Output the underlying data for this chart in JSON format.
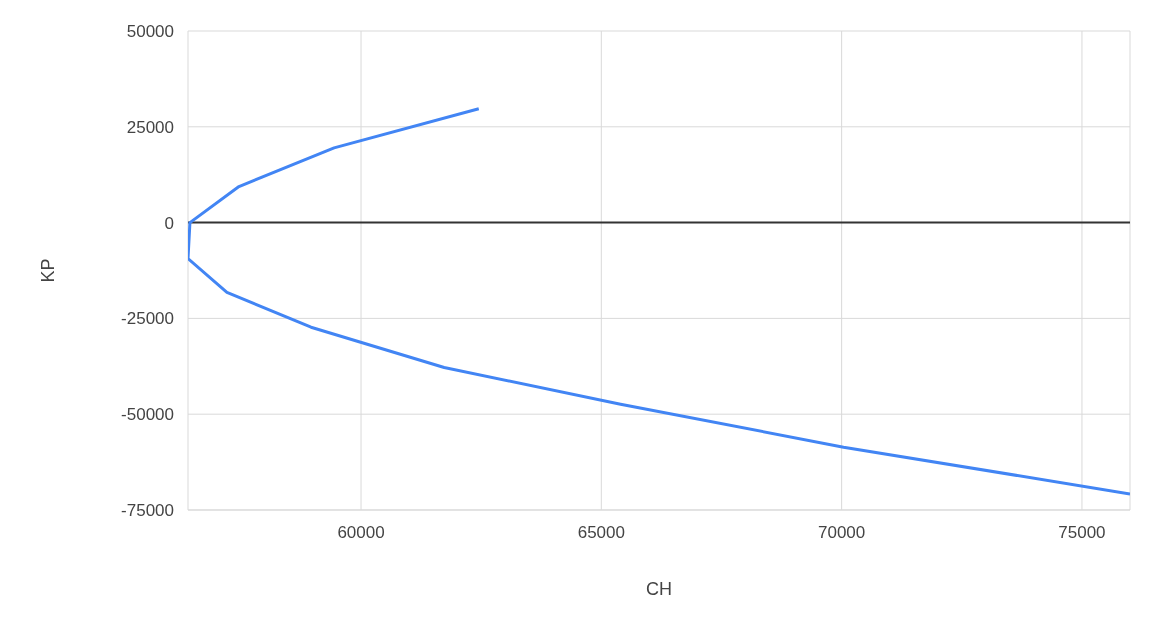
{
  "chart_data": {
    "type": "line",
    "xlabel": "CH",
    "ylabel": "KP",
    "x": [
      62450,
      59440,
      57460,
      56440,
      56400,
      57210,
      58960,
      61730,
      65400,
      70040,
      76000
    ],
    "series": [
      {
        "color": "#4285f4",
        "values": [
          29700,
          19500,
          9400,
          0,
          -9400,
          -18200,
          -27300,
          -37800,
          -47400,
          -58600,
          -70800
        ]
      }
    ],
    "xlim": [
      56400,
      76000
    ],
    "xticks": [
      60000,
      65000,
      70000,
      75000
    ],
    "ylim": [
      -75000,
      50000
    ],
    "yticks": [
      -75000,
      -50000,
      -25000,
      0,
      25000,
      50000
    ],
    "ref_lines": [
      {
        "axis": "y",
        "value": 0,
        "color": "#333333"
      }
    ],
    "grid": true,
    "legend": false,
    "marker": "none",
    "line_style": "solid"
  }
}
